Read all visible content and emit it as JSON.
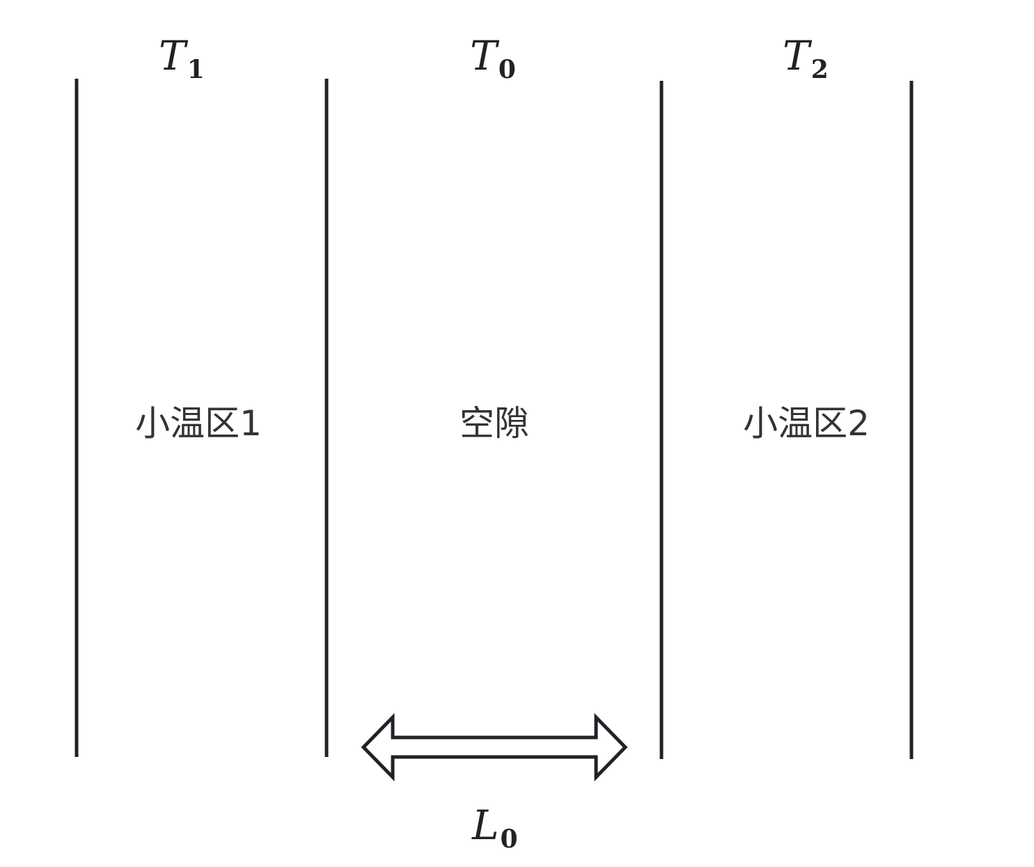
{
  "temperatures": {
    "t1": {
      "symbol": "T",
      "subscript": "1"
    },
    "t0": {
      "symbol": "T",
      "subscript": "0"
    },
    "t2": {
      "symbol": "T",
      "subscript": "2"
    }
  },
  "regions": {
    "zone1": "小温区1",
    "gap": "空隙",
    "zone2": "小温区2"
  },
  "gap_length": {
    "symbol": "L",
    "subscript": "0"
  },
  "colors": {
    "line": "#1f2328",
    "text": "#333333",
    "background": "#ffffff"
  }
}
